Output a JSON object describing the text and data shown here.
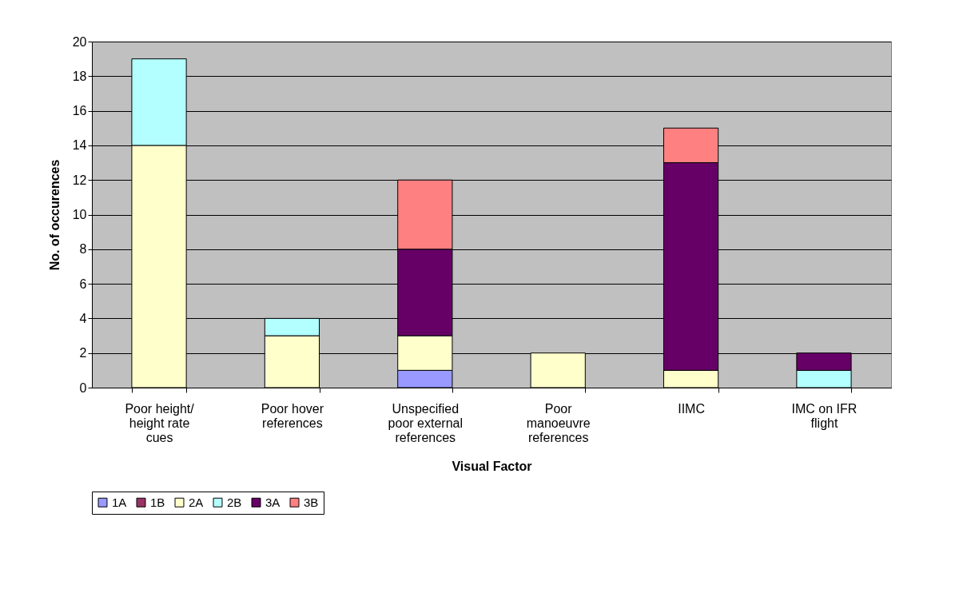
{
  "chart_data": {
    "type": "bar",
    "stacked": true,
    "xlabel": "Visual Factor",
    "ylabel": "No. of occurences",
    "categories": [
      "Poor height/\nheight rate\ncues",
      "Poor hover\nreferences",
      "Unspecified\npoor external\nreferences",
      "Poor\nmanoeuvre\nreferences",
      "IIMC",
      "IMC on IFR\nflight"
    ],
    "series": [
      {
        "name": "1A",
        "color": "#9999ff",
        "values": [
          null,
          null,
          1,
          null,
          null,
          null
        ]
      },
      {
        "name": "1B",
        "color": "#993366",
        "values": [
          null,
          null,
          null,
          null,
          null,
          null
        ]
      },
      {
        "name": "2A",
        "color": "#ffffcc",
        "values": [
          14,
          3,
          2,
          2,
          1,
          null
        ]
      },
      {
        "name": "2B",
        "color": "#b3ffff",
        "values": [
          5,
          1,
          null,
          null,
          null,
          1
        ]
      },
      {
        "name": "3A",
        "color": "#660066",
        "values": [
          null,
          null,
          5,
          null,
          12,
          1
        ]
      },
      {
        "name": "3B",
        "color": "#ff8080",
        "values": [
          null,
          null,
          4,
          null,
          2,
          null
        ]
      }
    ],
    "ylim": [
      0,
      20
    ],
    "yticks": [
      0,
      2,
      4,
      6,
      8,
      10,
      12,
      14,
      16,
      18,
      20
    ],
    "grid": "y",
    "legend": "bottom"
  }
}
